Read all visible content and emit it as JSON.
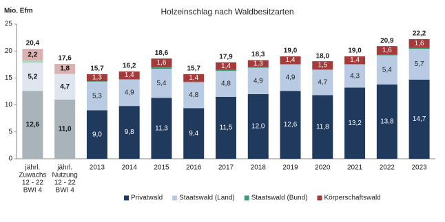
{
  "chart_data": {
    "type": "stacked_bar",
    "title": "Holzeinschlag nach Waldbesitzarten",
    "y_label": "Mio. Efm",
    "categories": [
      [
        "jährl.",
        "Zuwachs",
        "12 - 22",
        "BWI 4"
      ],
      [
        "jährl.",
        "Nutzung",
        "12 - 22",
        "BWI 4"
      ],
      "2013",
      "2014",
      "2015",
      "2016",
      "2017",
      "2018",
      "2019",
      "2020",
      "2021",
      "2022",
      "2023"
    ],
    "muted": [
      true,
      true,
      false,
      false,
      false,
      false,
      false,
      false,
      false,
      false,
      false,
      false,
      false
    ],
    "series": [
      {
        "name": "Privatwald",
        "color": "#203a5e",
        "muted_color": "#a9b3ba",
        "label_color": "#ffffff",
        "values": [
          12.6,
          11.0,
          9.0,
          9.8,
          11.3,
          9.4,
          11.5,
          12.0,
          12.6,
          11.8,
          13.2,
          13.8,
          14.7
        ],
        "value_labels": [
          "12,6",
          "11,0",
          "9,0",
          "9,8",
          "11,3",
          "9,4",
          "11,5",
          "12,0",
          "12,6",
          "11,8",
          "13,2",
          "13,8",
          "14,7"
        ]
      },
      {
        "name": "Staatswald (Land)",
        "color": "#b9cbe3",
        "muted_color": "#e0e6ef",
        "label_color": "#222222",
        "values": [
          5.2,
          4.7,
          5.3,
          4.9,
          5.4,
          4.8,
          4.8,
          4.9,
          4.9,
          4.7,
          4.3,
          5.4,
          5.7
        ],
        "value_labels": [
          "5,2",
          "4,7",
          "5,3",
          "4,9",
          "5,4",
          "4,8",
          "4,8",
          "4,9",
          "4,9",
          "4,7",
          "4,3",
          "5,4",
          "5,7"
        ]
      },
      {
        "name": "Staatswald (Bund)",
        "color": "#3a9f76",
        "muted_color": "#a9d9c2",
        "values": [
          0.4,
          0.1,
          0.1,
          0.1,
          0.3,
          0.1,
          0.2,
          0.1,
          0.1,
          0.1,
          0.1,
          0.1,
          0.2
        ]
      },
      {
        "name": "Körperschaftswald",
        "color": "#a43a3a",
        "muted_color": "#dcb1b1",
        "label_color": "#ffffff",
        "values": [
          2.2,
          1.8,
          1.3,
          1.4,
          1.6,
          1.4,
          1.4,
          1.3,
          1.4,
          1.5,
          1.4,
          1.6,
          1.6
        ],
        "value_labels": [
          "2,2",
          "1,8",
          "1,3",
          "1,4",
          "1,6",
          "1,4",
          "1,4",
          "1,3",
          "1,4",
          "1,5",
          "1,4",
          "1,6",
          "1,6"
        ]
      }
    ],
    "totals": {
      "values": [
        20.4,
        17.6,
        15.7,
        16.2,
        18.6,
        15.7,
        17.9,
        18.3,
        19.0,
        18.0,
        19.0,
        20.9,
        22.2
      ],
      "value_labels": [
        "20,4",
        "17,6",
        "15,7",
        "16,2",
        "18,6",
        "15,7",
        "17,9",
        "18,3",
        "19,0",
        "18,0",
        "19,0",
        "20,9",
        "22,2"
      ]
    },
    "ylim": [
      0,
      25
    ],
    "yticks": [
      0,
      5,
      10,
      15,
      20,
      25
    ],
    "legend": "bottom"
  }
}
